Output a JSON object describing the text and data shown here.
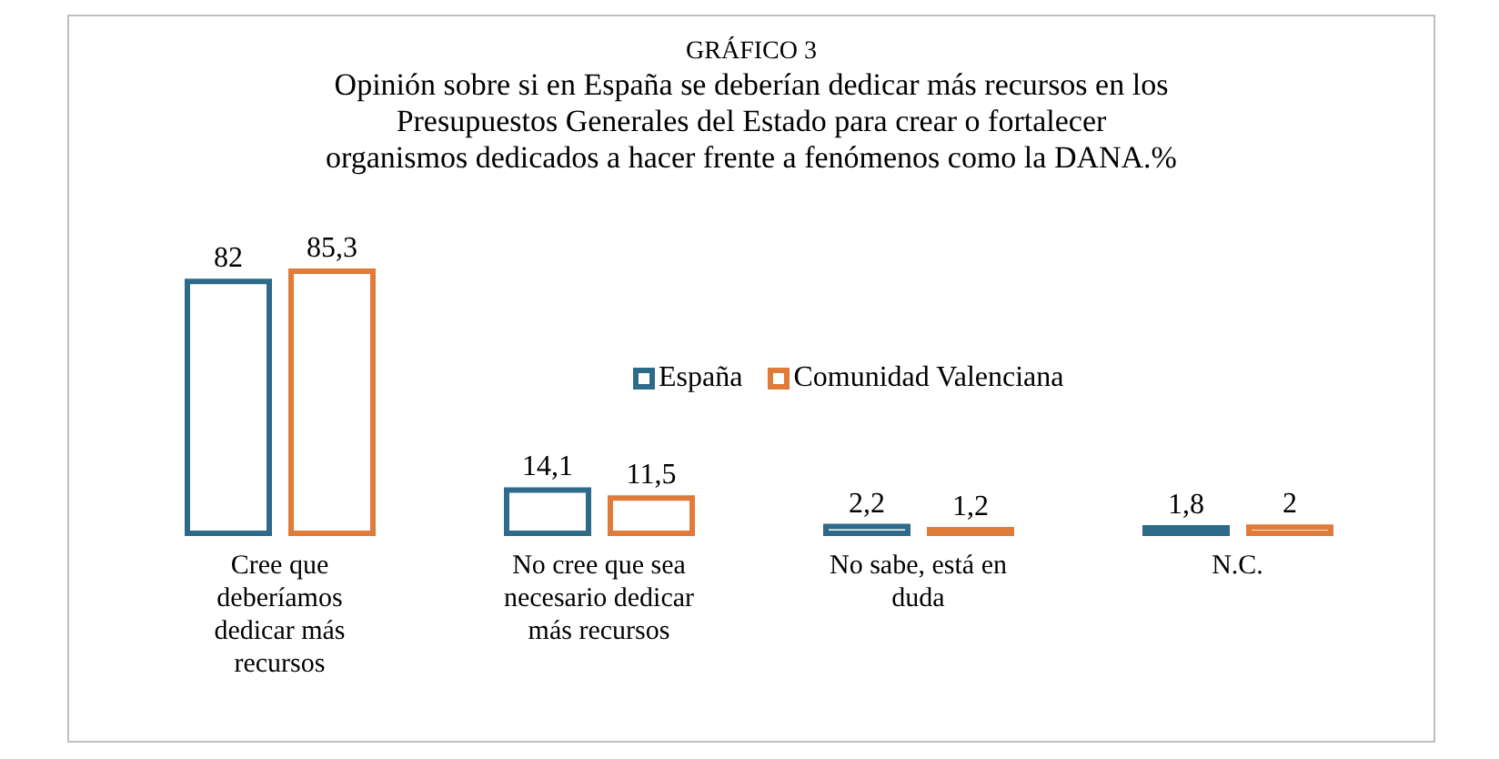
{
  "chart_data": {
    "type": "bar",
    "title": "GRÁFICO 3",
    "subtitle": "Opinión sobre si en España se deberían dedicar más recursos en los Presupuestos Generales del Estado para crear o fortalecer organismos dedicados a hacer frente a fenómenos como la DANA.%",
    "categories": [
      "Cree que deberíamos dedicar más recursos",
      "No cree que sea necesario dedicar más recursos",
      "No sabe, está en duda",
      "N.C."
    ],
    "series": [
      {
        "name": "España",
        "color": "#2e6b8a",
        "values": [
          82,
          14.1,
          2.2,
          1.8
        ],
        "value_labels": [
          "82",
          "14,1",
          "2,2",
          "1,8"
        ]
      },
      {
        "name": "Comunidad Valenciana",
        "color": "#e07b39",
        "values": [
          85.3,
          11.5,
          1.2,
          2
        ],
        "value_labels": [
          "85,3",
          "11,5",
          "1,2",
          "2"
        ]
      }
    ],
    "legend": "top right",
    "grid": false
  }
}
